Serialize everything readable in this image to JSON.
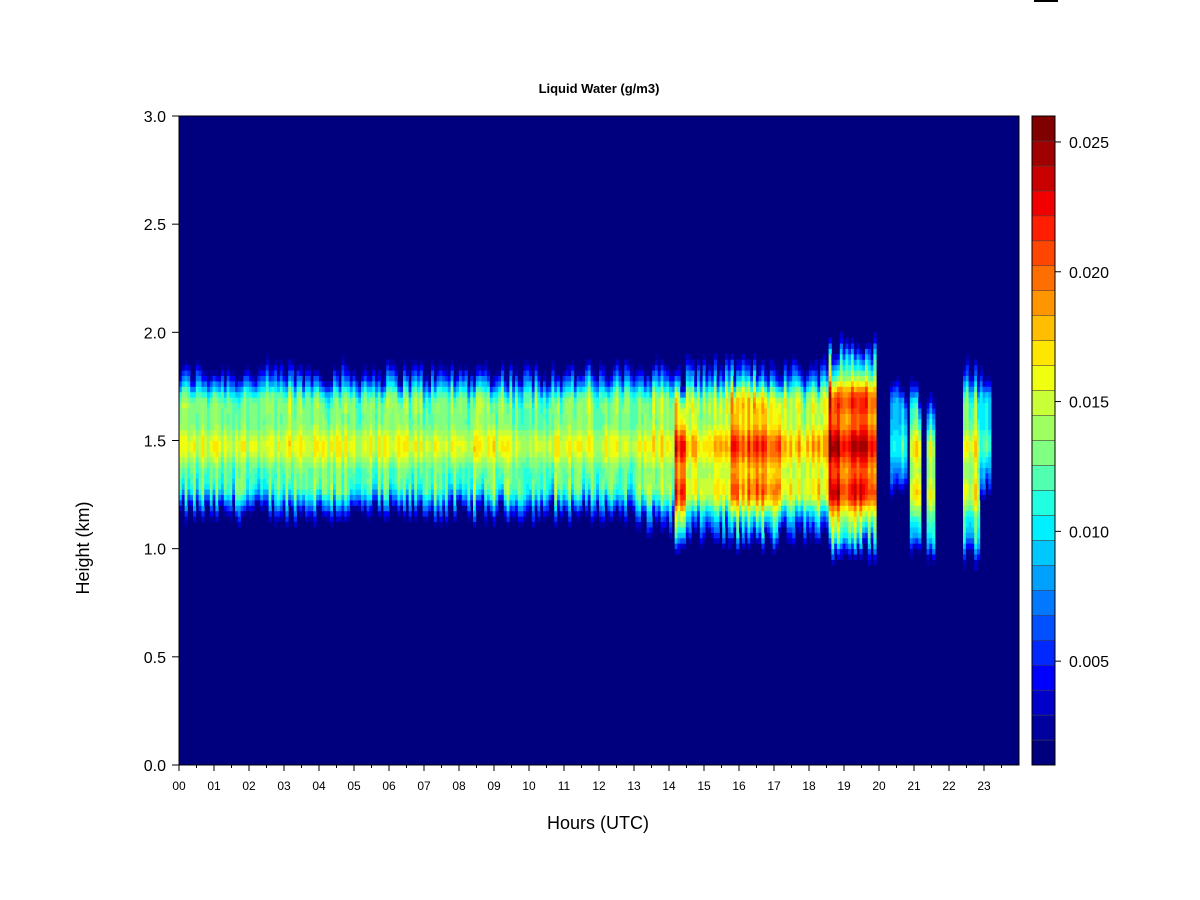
{
  "chart_data": {
    "type": "heatmap",
    "title": "Liquid Water (g/m3)",
    "xlabel": "Hours (UTC)",
    "ylabel": "Height (km)",
    "xlim": [
      0,
      24
    ],
    "ylim": [
      0,
      3.0
    ],
    "x_ticks": [
      "00",
      "01",
      "02",
      "03",
      "04",
      "05",
      "06",
      "07",
      "08",
      "09",
      "10",
      "11",
      "12",
      "13",
      "14",
      "15",
      "16",
      "17",
      "18",
      "19",
      "20",
      "21",
      "22",
      "23"
    ],
    "y_ticks": [
      "0.0",
      "0.5",
      "1.0",
      "1.5",
      "2.0",
      "2.5",
      "3.0"
    ],
    "colorbar": {
      "range": [
        0.001,
        0.026
      ],
      "ticks": [
        "0.005",
        "0.010",
        "0.015",
        "0.020",
        "0.025"
      ],
      "tick_values": [
        0.005,
        0.01,
        0.015,
        0.02,
        0.025
      ],
      "colors": [
        "#00007F",
        "#00009F",
        "#0000C8",
        "#0000FF",
        "#0028FF",
        "#0050FF",
        "#0078FF",
        "#00A0FF",
        "#00C8FF",
        "#00F0FF",
        "#20FFDF",
        "#50FFAF",
        "#80FF80",
        "#A0FF60",
        "#C8FF37",
        "#F0FF0F",
        "#FFE600",
        "#FFBE00",
        "#FF9600",
        "#FF6E00",
        "#FF4600",
        "#FF1E00",
        "#F00000",
        "#C80000",
        "#A00000",
        "#800000"
      ]
    },
    "cloud_layers": [
      {
        "x_start": 0,
        "x_end": 13.0,
        "base": 1.15,
        "top": 1.83,
        "peak": 0.016
      },
      {
        "x_start": 13.0,
        "x_end": 14.2,
        "base": 1.1,
        "top": 1.85,
        "peak": 0.017
      },
      {
        "x_start": 14.2,
        "x_end": 14.5,
        "base": 0.97,
        "top": 1.8,
        "peak": 0.023
      },
      {
        "x_start": 14.5,
        "x_end": 15.8,
        "base": 1.05,
        "top": 1.85,
        "peak": 0.018
      },
      {
        "x_start": 15.8,
        "x_end": 17.2,
        "base": 1.02,
        "top": 1.85,
        "peak": 0.021
      },
      {
        "x_start": 17.2,
        "x_end": 18.6,
        "base": 1.05,
        "top": 1.85,
        "peak": 0.018
      },
      {
        "x_start": 18.6,
        "x_end": 19.9,
        "base": 0.98,
        "top": 1.95,
        "peak": 0.025
      },
      {
        "x_start": 20.3,
        "x_end": 20.8,
        "base": 1.25,
        "top": 1.75,
        "peak": 0.012
      },
      {
        "x_start": 20.9,
        "x_end": 21.2,
        "base": 0.98,
        "top": 1.75,
        "peak": 0.017
      },
      {
        "x_start": 21.4,
        "x_end": 21.6,
        "base": 0.98,
        "top": 1.75,
        "peak": 0.017
      },
      {
        "x_start": 22.4,
        "x_end": 22.9,
        "base": 0.95,
        "top": 1.85,
        "peak": 0.017
      },
      {
        "x_start": 22.9,
        "x_end": 23.2,
        "base": 1.25,
        "top": 1.8,
        "peak": 0.012
      }
    ]
  }
}
